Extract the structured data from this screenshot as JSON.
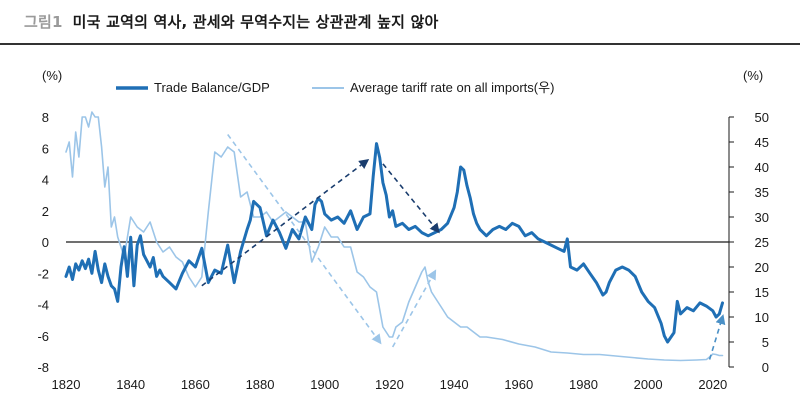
{
  "header": {
    "figure_label": "그림1",
    "title": "미국 교역의 역사, 관세와 무역수지는 상관관계 높지 않아"
  },
  "chart_data": {
    "type": "line",
    "title": "미국 교역의 역사, 관세와 무역수지는 상관관계 높지 않아",
    "left_unit": "(%)",
    "right_unit": "(%)",
    "xlim": [
      1820,
      2025
    ],
    "ylim_left": [
      -8,
      8
    ],
    "ylim_right": [
      0,
      50
    ],
    "x_ticks": [
      "1820",
      "1840",
      "1860",
      "1880",
      "1900",
      "1920",
      "1940",
      "1960",
      "1980",
      "2000",
      "2020"
    ],
    "left_ticks": [
      "8",
      "6",
      "4",
      "2",
      "0",
      "-2",
      "-4",
      "-6",
      "-8"
    ],
    "right_ticks": [
      "50",
      "45",
      "40",
      "35",
      "30",
      "25",
      "20",
      "15",
      "10",
      "5",
      "0"
    ],
    "legend": [
      {
        "name": "Trade Balance/GDP",
        "axis": "left",
        "color": "#1f6fb5"
      },
      {
        "name": "Average tariff rate on all imports(우)",
        "axis": "right",
        "color": "#9cc5e8"
      }
    ],
    "series": [
      {
        "name": "Trade Balance/GDP",
        "axis": "left",
        "color": "#1f6fb5",
        "x": [
          1820,
          1821,
          1822,
          1823,
          1824,
          1825,
          1826,
          1827,
          1828,
          1829,
          1830,
          1831,
          1832,
          1833,
          1834,
          1835,
          1836,
          1837,
          1838,
          1839,
          1840,
          1841,
          1842,
          1843,
          1844,
          1845,
          1846,
          1847,
          1848,
          1849,
          1850,
          1852,
          1854,
          1856,
          1858,
          1860,
          1862,
          1864,
          1866,
          1868,
          1870,
          1872,
          1874,
          1876,
          1877,
          1878,
          1880,
          1882,
          1884,
          1886,
          1888,
          1890,
          1892,
          1894,
          1896,
          1897,
          1898,
          1899,
          1900,
          1902,
          1904,
          1906,
          1908,
          1910,
          1912,
          1914,
          1915,
          1916,
          1917,
          1918,
          1919,
          1920,
          1921,
          1922,
          1924,
          1926,
          1928,
          1930,
          1932,
          1934,
          1936,
          1938,
          1940,
          1941,
          1942,
          1943,
          1944,
          1945,
          1946,
          1947,
          1948,
          1950,
          1952,
          1954,
          1956,
          1958,
          1960,
          1962,
          1964,
          1966,
          1968,
          1970,
          1972,
          1974,
          1975,
          1976,
          1978,
          1980,
          1982,
          1984,
          1986,
          1987,
          1988,
          1990,
          1992,
          1994,
          1996,
          1998,
          2000,
          2002,
          2004,
          2005,
          2006,
          2008,
          2009,
          2010,
          2012,
          2014,
          2016,
          2018,
          2020,
          2021,
          2022,
          2023
        ],
        "values": [
          -2.2,
          -1.6,
          -2.4,
          -1.4,
          -1.8,
          -1.2,
          -1.7,
          -1.1,
          -2.0,
          -0.6,
          -1.8,
          -2.6,
          -1.4,
          -2.2,
          -2.8,
          -3.0,
          -3.8,
          -1.6,
          -0.3,
          -2.2,
          0.3,
          -2.8,
          -0.2,
          0.4,
          -0.8,
          -1.2,
          -1.6,
          -1.0,
          -2.2,
          -1.8,
          -2.2,
          -2.6,
          -3.0,
          -2.0,
          -1.2,
          -1.6,
          -0.4,
          -2.6,
          -1.8,
          -2.0,
          -0.2,
          -2.6,
          -0.6,
          0.8,
          1.4,
          2.6,
          2.2,
          0.4,
          1.4,
          0.6,
          -0.4,
          0.8,
          0.2,
          1.6,
          0.8,
          2.4,
          2.8,
          2.6,
          1.8,
          1.4,
          1.6,
          1.2,
          2.0,
          0.8,
          1.6,
          1.8,
          4.2,
          6.3,
          5.4,
          3.8,
          3.0,
          1.6,
          2.0,
          1.0,
          1.2,
          0.8,
          1.0,
          0.6,
          0.4,
          0.6,
          0.8,
          1.2,
          2.2,
          3.2,
          4.8,
          4.6,
          3.6,
          2.8,
          1.8,
          1.2,
          0.8,
          0.4,
          0.8,
          1.0,
          0.8,
          1.2,
          1.0,
          0.4,
          0.6,
          0.2,
          0.0,
          -0.2,
          -0.4,
          -0.6,
          0.2,
          -1.6,
          -1.8,
          -1.4,
          -2.0,
          -2.6,
          -3.4,
          -3.2,
          -2.6,
          -1.8,
          -1.6,
          -1.8,
          -2.2,
          -3.2,
          -3.8,
          -4.2,
          -5.2,
          -6.0,
          -6.4,
          -5.8,
          -3.8,
          -4.6,
          -4.2,
          -4.4,
          -3.9,
          -4.1,
          -4.4,
          -4.8,
          -4.6,
          -3.9
        ]
      },
      {
        "name": "Average tariff rate on all imports(우)",
        "axis": "right",
        "color": "#9cc5e8",
        "x": [
          1820,
          1821,
          1822,
          1823,
          1824,
          1825,
          1826,
          1827,
          1828,
          1829,
          1830,
          1831,
          1832,
          1833,
          1834,
          1835,
          1836,
          1837,
          1838,
          1840,
          1842,
          1844,
          1846,
          1848,
          1850,
          1852,
          1854,
          1856,
          1858,
          1860,
          1862,
          1864,
          1866,
          1868,
          1870,
          1872,
          1874,
          1876,
          1878,
          1880,
          1882,
          1884,
          1886,
          1888,
          1890,
          1892,
          1894,
          1896,
          1898,
          1900,
          1902,
          1904,
          1906,
          1908,
          1910,
          1912,
          1914,
          1916,
          1918,
          1920,
          1921,
          1922,
          1924,
          1926,
          1928,
          1930,
          1931,
          1932,
          1933,
          1934,
          1936,
          1938,
          1940,
          1942,
          1944,
          1946,
          1948,
          1950,
          1955,
          1960,
          1965,
          1970,
          1975,
          1980,
          1985,
          1990,
          1995,
          2000,
          2005,
          2010,
          2015,
          2018,
          2019,
          2020,
          2021,
          2022,
          2023
        ],
        "values": [
          43,
          45,
          38,
          47,
          42,
          50,
          50,
          48,
          51,
          50,
          50,
          44,
          36,
          40,
          28,
          30,
          26,
          24,
          22,
          30,
          28,
          27,
          29,
          25,
          23,
          24,
          22,
          21,
          18,
          16,
          18,
          31,
          43,
          42,
          44,
          43,
          34,
          35,
          30,
          30,
          31,
          29,
          30,
          31,
          30,
          29,
          29,
          21,
          24,
          28,
          26,
          26,
          24,
          24,
          19,
          18,
          16,
          15,
          8,
          6,
          6,
          8,
          9,
          13,
          16,
          19,
          20,
          17,
          15,
          14,
          12,
          10,
          9,
          8,
          8,
          7,
          6,
          6,
          5.5,
          4.6,
          4.0,
          3.0,
          2.8,
          2.5,
          2.5,
          2.2,
          1.9,
          1.6,
          1.4,
          1.3,
          1.4,
          1.5,
          2.0,
          2.6,
          2.5,
          2.3,
          2.3
        ]
      }
    ],
    "annotations": [
      {
        "type": "arrow",
        "style": "dashed",
        "color": "#1a3d6e",
        "from": [
          1862,
          -2.8
        ],
        "to": [
          1913,
          5.2
        ]
      },
      {
        "type": "arrow",
        "style": "dashed",
        "color": "#1a3d6e",
        "from": [
          1918,
          5.0
        ],
        "to": [
          1935,
          0.7
        ]
      },
      {
        "type": "arrow",
        "style": "dashed",
        "color": "#9cc5e8",
        "axis": "right",
        "from": [
          1870,
          46.5
        ],
        "to": [
          1917,
          5.0
        ]
      },
      {
        "type": "arrow",
        "style": "dashed",
        "color": "#9cc5e8",
        "axis": "right",
        "from": [
          1921,
          4.0
        ],
        "to": [
          1934,
          19.0
        ]
      },
      {
        "type": "arrow",
        "style": "dashed",
        "color": "#4a90c6",
        "axis": "right",
        "from": [
          2019,
          1.5
        ],
        "to": [
          2023,
          10.0
        ]
      }
    ]
  }
}
